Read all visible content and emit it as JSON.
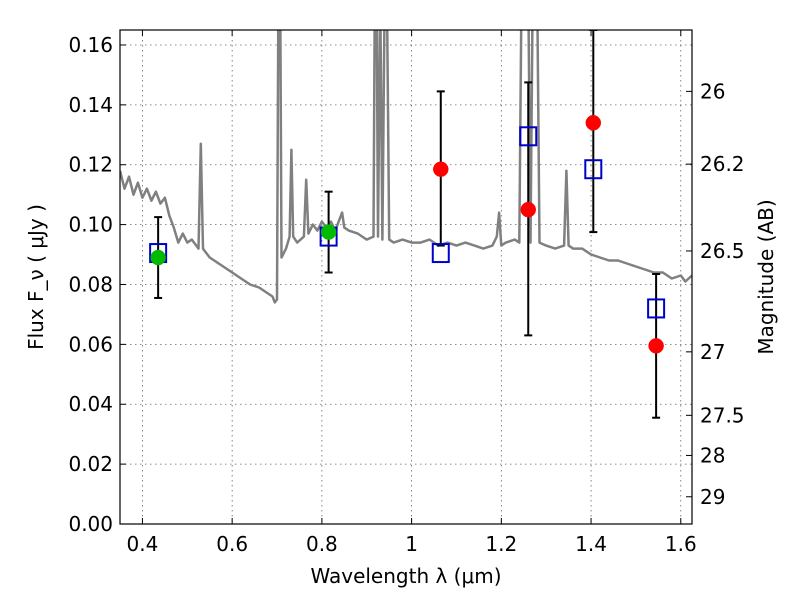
{
  "chart_data": {
    "type": "scatter",
    "xlabel": "Wavelength  λ (μm)",
    "ylabel": "Flux  F_ν  ( μJy )",
    "y2label": "Magnitude (AB)",
    "xlim": [
      0.35,
      1.625
    ],
    "ylim": [
      0.0,
      0.165
    ],
    "x_ticks": [
      {
        "value": 0.4,
        "label": "0.4"
      },
      {
        "value": 0.6,
        "label": "0.6"
      },
      {
        "value": 0.8,
        "label": "0.8"
      },
      {
        "value": 1.0,
        "label": "1"
      },
      {
        "value": 1.2,
        "label": "1.2"
      },
      {
        "value": 1.4,
        "label": "1.4"
      },
      {
        "value": 1.6,
        "label": "1.6"
      }
    ],
    "y_ticks": [
      {
        "value": 0.0,
        "label": "0.00"
      },
      {
        "value": 0.02,
        "label": "0.02"
      },
      {
        "value": 0.04,
        "label": "0.04"
      },
      {
        "value": 0.06,
        "label": "0.06"
      },
      {
        "value": 0.08,
        "label": "0.08"
      },
      {
        "value": 0.1,
        "label": "0.10"
      },
      {
        "value": 0.12,
        "label": "0.12"
      },
      {
        "value": 0.14,
        "label": "0.14"
      },
      {
        "value": 0.16,
        "label": "0.16"
      }
    ],
    "y2_ticks": [
      {
        "flux": 0.1445,
        "label": "26"
      },
      {
        "flux": 0.1202,
        "label": "26.2"
      },
      {
        "flux": 0.0912,
        "label": "26.5"
      },
      {
        "flux": 0.0575,
        "label": "27"
      },
      {
        "flux": 0.0363,
        "label": "27.5"
      },
      {
        "flux": 0.0229,
        "label": "28"
      },
      {
        "flux": 0.0091,
        "label": "29"
      }
    ],
    "grid": true,
    "colors": {
      "model": "#808080",
      "observed_red": "#ff0000",
      "observed_green": "#00bb00",
      "model_boxes": "#0000cc",
      "errorbars": "#000000"
    },
    "series": [
      {
        "kind": "line",
        "points": [
          [
            0.35,
            0.118
          ],
          [
            0.36,
            0.112
          ],
          [
            0.37,
            0.116
          ],
          [
            0.38,
            0.11
          ],
          [
            0.39,
            0.114
          ],
          [
            0.4,
            0.109
          ],
          [
            0.41,
            0.112
          ],
          [
            0.42,
            0.108
          ],
          [
            0.43,
            0.111
          ],
          [
            0.44,
            0.107
          ],
          [
            0.45,
            0.109
          ],
          [
            0.46,
            0.103
          ],
          [
            0.47,
            0.099
          ],
          [
            0.48,
            0.094
          ],
          [
            0.49,
            0.097
          ],
          [
            0.5,
            0.094
          ],
          [
            0.51,
            0.095
          ],
          [
            0.52,
            0.093
          ],
          [
            0.525,
            0.092
          ],
          [
            0.53,
            0.127
          ],
          [
            0.535,
            0.092
          ],
          [
            0.54,
            0.091
          ],
          [
            0.55,
            0.089
          ],
          [
            0.56,
            0.088
          ],
          [
            0.58,
            0.086
          ],
          [
            0.6,
            0.084
          ],
          [
            0.62,
            0.082
          ],
          [
            0.64,
            0.08
          ],
          [
            0.66,
            0.079
          ],
          [
            0.68,
            0.077
          ],
          [
            0.69,
            0.076
          ],
          [
            0.695,
            0.074
          ],
          [
            0.7,
            0.075
          ],
          [
            0.703,
            0.178
          ],
          [
            0.707,
            0.178
          ],
          [
            0.71,
            0.089
          ],
          [
            0.72,
            0.092
          ],
          [
            0.728,
            0.096
          ],
          [
            0.732,
            0.125
          ],
          [
            0.736,
            0.096
          ],
          [
            0.745,
            0.094
          ],
          [
            0.76,
            0.096
          ],
          [
            0.765,
            0.115
          ],
          [
            0.77,
            0.097
          ],
          [
            0.78,
            0.1
          ],
          [
            0.79,
            0.098
          ],
          [
            0.8,
            0.101
          ],
          [
            0.81,
            0.099
          ],
          [
            0.82,
            0.101
          ],
          [
            0.83,
            0.098
          ],
          [
            0.84,
            0.102
          ],
          [
            0.845,
            0.104
          ],
          [
            0.85,
            0.099
          ],
          [
            0.86,
            0.098
          ],
          [
            0.88,
            0.097
          ],
          [
            0.9,
            0.095
          ],
          [
            0.915,
            0.096
          ],
          [
            0.918,
            0.178
          ],
          [
            0.922,
            0.178
          ],
          [
            0.925,
            0.096
          ],
          [
            0.93,
            0.178
          ],
          [
            0.935,
            0.095
          ],
          [
            0.94,
            0.178
          ],
          [
            0.945,
            0.178
          ],
          [
            0.95,
            0.095
          ],
          [
            0.96,
            0.094
          ],
          [
            0.98,
            0.095
          ],
          [
            1.0,
            0.094
          ],
          [
            1.02,
            0.094
          ],
          [
            1.04,
            0.095
          ],
          [
            1.06,
            0.093
          ],
          [
            1.08,
            0.094
          ],
          [
            1.1,
            0.093
          ],
          [
            1.12,
            0.094
          ],
          [
            1.14,
            0.093
          ],
          [
            1.16,
            0.092
          ],
          [
            1.18,
            0.093
          ],
          [
            1.19,
            0.096
          ],
          [
            1.195,
            0.104
          ],
          [
            1.2,
            0.093
          ],
          [
            1.21,
            0.094
          ],
          [
            1.23,
            0.095
          ],
          [
            1.24,
            0.094
          ],
          [
            1.245,
            0.178
          ],
          [
            1.26,
            0.178
          ],
          [
            1.265,
            0.094
          ],
          [
            1.27,
            0.178
          ],
          [
            1.28,
            0.178
          ],
          [
            1.285,
            0.094
          ],
          [
            1.3,
            0.093
          ],
          [
            1.32,
            0.092
          ],
          [
            1.34,
            0.093
          ],
          [
            1.345,
            0.118
          ],
          [
            1.35,
            0.093
          ],
          [
            1.36,
            0.092
          ],
          [
            1.38,
            0.092
          ],
          [
            1.4,
            0.09
          ],
          [
            1.42,
            0.089
          ],
          [
            1.44,
            0.088
          ],
          [
            1.46,
            0.088
          ],
          [
            1.48,
            0.087
          ],
          [
            1.5,
            0.086
          ],
          [
            1.52,
            0.085
          ],
          [
            1.54,
            0.084
          ],
          [
            1.56,
            0.084
          ],
          [
            1.58,
            0.082
          ],
          [
            1.6,
            0.083
          ],
          [
            1.61,
            0.081
          ],
          [
            1.625,
            0.083
          ]
        ]
      },
      {
        "kind": "errorbars",
        "points": [
          {
            "x": 0.435,
            "y": 0.089,
            "ylo": 0.0755,
            "yhi": 0.1025,
            "color": "green"
          },
          {
            "x": 0.815,
            "y": 0.0975,
            "ylo": 0.084,
            "yhi": 0.111,
            "color": "green"
          },
          {
            "x": 1.065,
            "y": 0.1185,
            "ylo": 0.093,
            "yhi": 0.1445,
            "color": "red"
          },
          {
            "x": 1.26,
            "y": 0.105,
            "ylo": 0.063,
            "yhi": 0.1475,
            "color": "red"
          },
          {
            "x": 1.405,
            "y": 0.134,
            "ylo": 0.0975,
            "yhi": 0.165,
            "color": "red"
          },
          {
            "x": 1.545,
            "y": 0.0595,
            "ylo": 0.0355,
            "yhi": 0.0835,
            "color": "red"
          }
        ]
      },
      {
        "kind": "boxes",
        "points": [
          [
            0.435,
            0.0905
          ],
          [
            0.815,
            0.096
          ],
          [
            1.065,
            0.0905
          ],
          [
            1.26,
            0.1295
          ],
          [
            1.405,
            0.1185
          ],
          [
            1.545,
            0.072
          ]
        ]
      }
    ]
  }
}
